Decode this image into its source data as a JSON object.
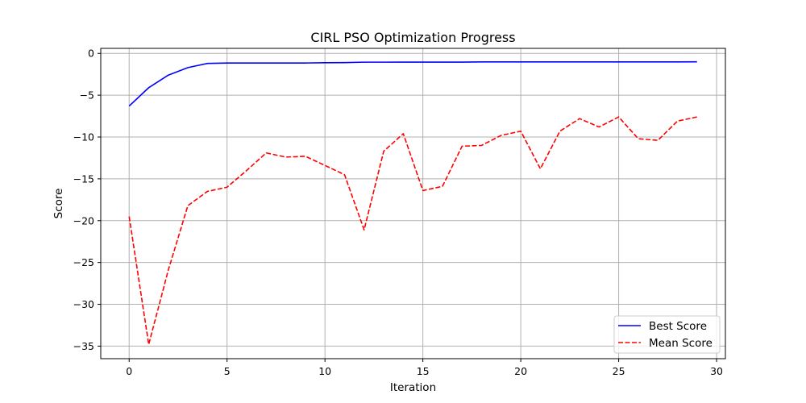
{
  "chart_data": {
    "type": "line",
    "title": "CIRL PSO Optimization Progress",
    "xlabel": "Iteration",
    "ylabel": "Score",
    "xlim": [
      -1.45,
      30.45
    ],
    "ylim": [
      -36.5,
      0.6
    ],
    "xticks": [
      0,
      5,
      10,
      15,
      20,
      25,
      30
    ],
    "yticks": [
      0,
      -5,
      -10,
      -15,
      -20,
      -25,
      -30,
      -35
    ],
    "grid": true,
    "legend_position": "lower right",
    "x": [
      0,
      1,
      2,
      3,
      4,
      5,
      6,
      7,
      8,
      9,
      10,
      11,
      12,
      13,
      14,
      15,
      16,
      17,
      18,
      19,
      20,
      21,
      22,
      23,
      24,
      25,
      26,
      27,
      28,
      29
    ],
    "series": [
      {
        "name": "Best Score",
        "color": "#0000ff",
        "style": "solid",
        "values": [
          -6.3,
          -4.1,
          -2.6,
          -1.7,
          -1.2,
          -1.15,
          -1.15,
          -1.15,
          -1.15,
          -1.15,
          -1.12,
          -1.1,
          -1.05,
          -1.05,
          -1.04,
          -1.04,
          -1.04,
          -1.04,
          -1.02,
          -1.02,
          -1.02,
          -1.02,
          -1.02,
          -1.02,
          -1.02,
          -1.02,
          -1.02,
          -1.02,
          -1.02,
          -1.01
        ]
      },
      {
        "name": "Mean Score",
        "color": "#ff0000",
        "style": "dashed",
        "values": [
          -19.5,
          -34.8,
          -25.9,
          -18.2,
          -16.5,
          -16.0,
          -14.0,
          -11.9,
          -12.4,
          -12.3,
          -13.4,
          -14.5,
          -21.1,
          -11.7,
          -9.6,
          -16.4,
          -15.9,
          -11.1,
          -11.0,
          -9.8,
          -9.3,
          -13.8,
          -9.3,
          -7.8,
          -8.8,
          -7.6,
          -10.2,
          -10.4,
          -8.1,
          -7.6
        ]
      }
    ]
  }
}
